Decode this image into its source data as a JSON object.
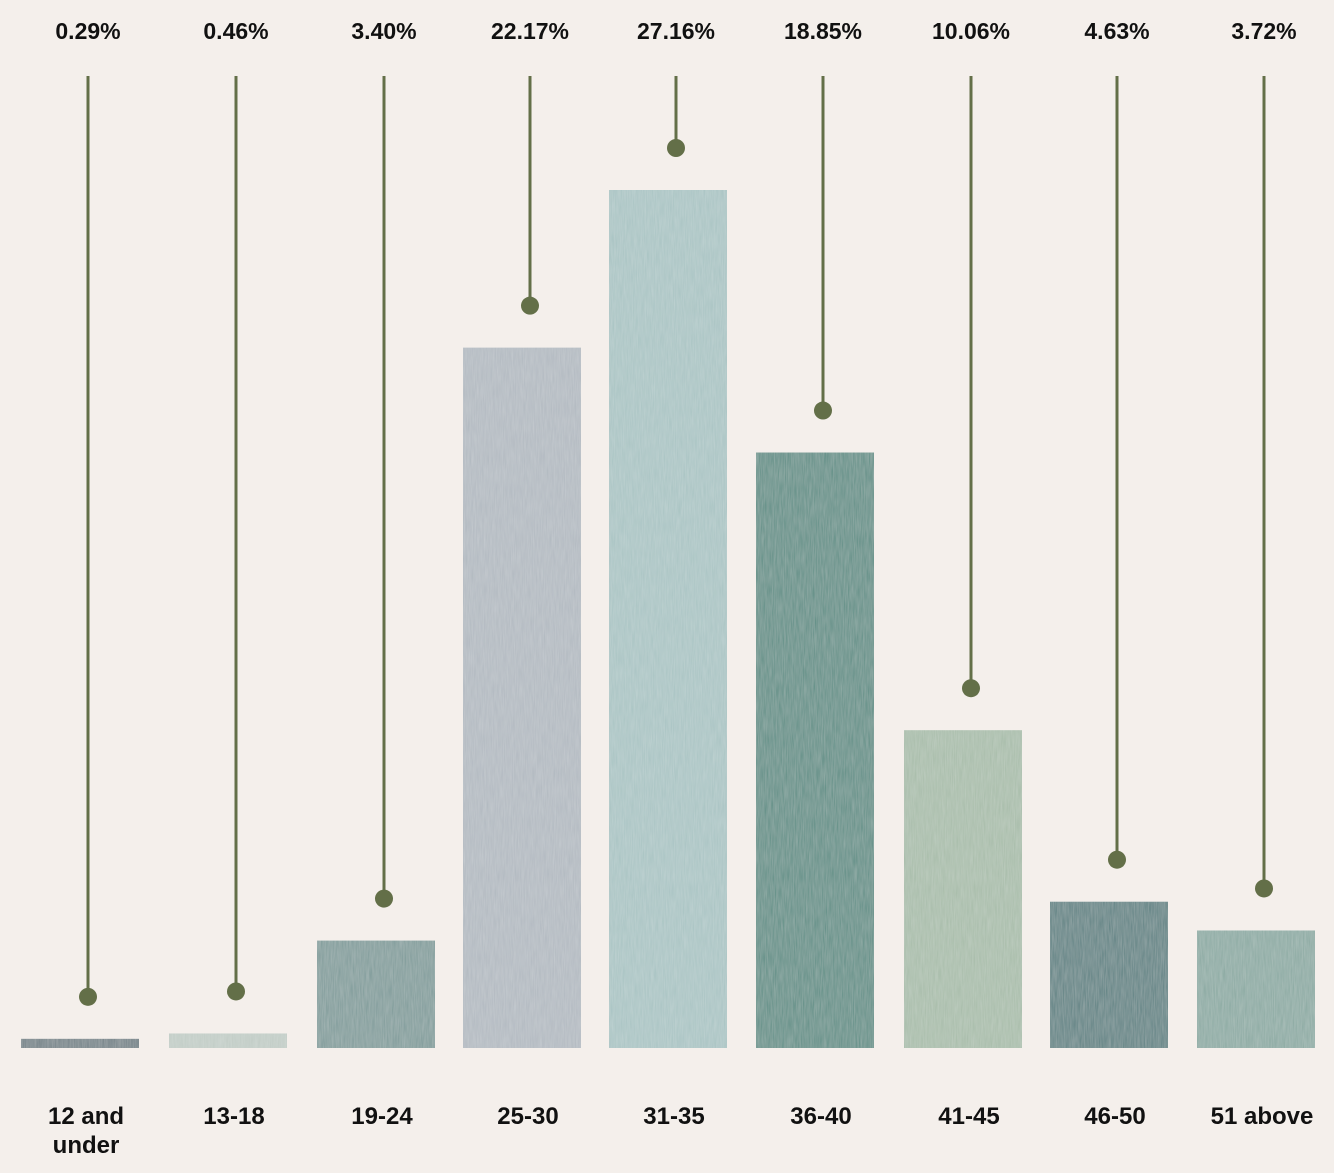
{
  "chart_data": {
    "type": "bar",
    "categories": [
      [
        "12 and",
        "under"
      ],
      [
        "13-18"
      ],
      [
        "19-24"
      ],
      [
        "25-30"
      ],
      [
        "31-35"
      ],
      [
        "36-40"
      ],
      [
        "41-45"
      ],
      [
        "46-50"
      ],
      [
        "51 above"
      ]
    ],
    "values": [
      0.29,
      0.46,
      3.4,
      22.17,
      27.16,
      18.85,
      10.06,
      4.63,
      3.72
    ],
    "value_labels": [
      "0.29%",
      "0.46%",
      "3.40%",
      "22.17%",
      "27.16%",
      "18.85%",
      "10.06%",
      "4.63%",
      "3.72%"
    ],
    "ylim": [
      0,
      27.16
    ],
    "bar_colors": [
      "#6f7f84",
      "#bfcbc4",
      "#7d9a98",
      "#b0b8bf",
      "#a7c3c2",
      "#5b8c83",
      "#a6bba8",
      "#5a7f80",
      "#88a8a0"
    ],
    "leader_color": "#636f48",
    "background": "#f4efeb",
    "grid": false,
    "legend": "none"
  }
}
